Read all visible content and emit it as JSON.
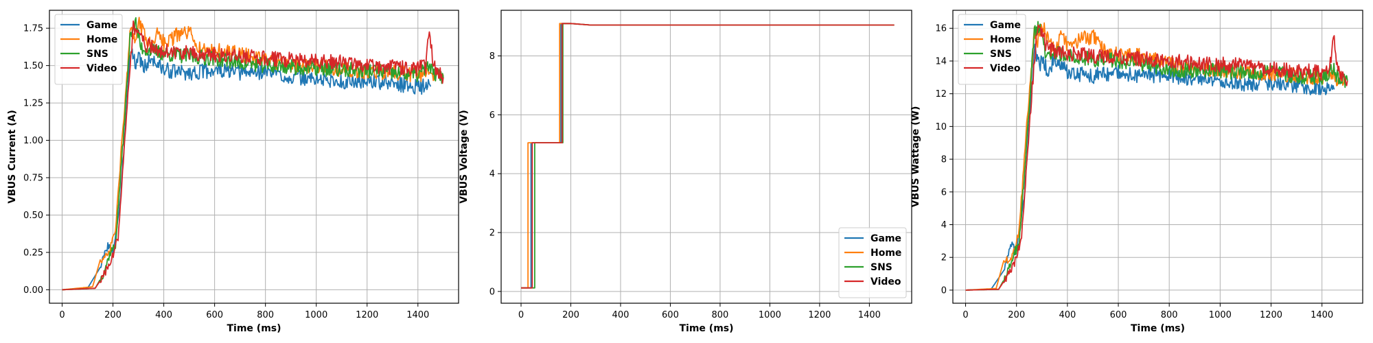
{
  "colors": {
    "Game": "#1f77b4",
    "Home": "#ff7f0e",
    "SNS": "#2ca02c",
    "Video": "#d62728"
  },
  "chart_data": [
    {
      "type": "line",
      "xlabel": "Time (ms)",
      "ylabel": "VBUS Current (A)",
      "xlim": [
        -50,
        1560
      ],
      "ylim": [
        -0.09,
        1.87
      ],
      "xticks": [
        0,
        200,
        400,
        600,
        800,
        1000,
        1200,
        1400
      ],
      "yticks": [
        0.0,
        0.25,
        0.5,
        0.75,
        1.0,
        1.25,
        1.5,
        1.75
      ],
      "ytick_labels": [
        "0.00",
        "0.25",
        "0.50",
        "0.75",
        "1.00",
        "1.25",
        "1.50",
        "1.75"
      ],
      "grid": true,
      "legend_position": "top-left",
      "series": [
        {
          "name": "Game",
          "x": [
            0,
            100,
            150,
            180,
            200,
            230,
            260,
            270,
            290,
            300,
            320,
            350,
            400,
            500,
            600,
            700,
            800,
            900,
            1000,
            1100,
            1200,
            1300,
            1400,
            1450
          ],
          "y": [
            0.0,
            0.01,
            0.15,
            0.3,
            0.25,
            0.6,
            1.4,
            1.62,
            1.5,
            1.58,
            1.48,
            1.55,
            1.47,
            1.45,
            1.47,
            1.45,
            1.46,
            1.42,
            1.41,
            1.39,
            1.4,
            1.38,
            1.36,
            1.36
          ]
        },
        {
          "name": "Home",
          "x": [
            0,
            120,
            150,
            180,
            210,
            240,
            270,
            280,
            300,
            330,
            350,
            380,
            400,
            450,
            500,
            550,
            600,
            700,
            800,
            900,
            1000,
            1100,
            1200,
            1300,
            1400,
            1500
          ],
          "y": [
            0.0,
            0.02,
            0.2,
            0.22,
            0.4,
            1.1,
            1.75,
            1.65,
            1.78,
            1.7,
            1.62,
            1.75,
            1.65,
            1.7,
            1.72,
            1.6,
            1.6,
            1.58,
            1.53,
            1.5,
            1.5,
            1.47,
            1.46,
            1.45,
            1.44,
            1.43
          ]
        },
        {
          "name": "SNS",
          "x": [
            0,
            130,
            160,
            190,
            210,
            240,
            270,
            290,
            310,
            350,
            400,
            500,
            600,
            700,
            800,
            900,
            1000,
            1100,
            1200,
            1300,
            1400,
            1450,
            1460,
            1500
          ],
          "y": [
            0.0,
            0.01,
            0.1,
            0.25,
            0.3,
            1.0,
            1.74,
            1.78,
            1.62,
            1.6,
            1.58,
            1.56,
            1.55,
            1.52,
            1.5,
            1.49,
            1.48,
            1.47,
            1.47,
            1.45,
            1.44,
            1.5,
            1.44,
            1.42
          ]
        },
        {
          "name": "Video",
          "x": [
            0,
            130,
            165,
            195,
            220,
            250,
            280,
            300,
            320,
            350,
            400,
            500,
            600,
            700,
            800,
            900,
            1000,
            1100,
            1200,
            1300,
            1400,
            1430,
            1445,
            1460,
            1500
          ],
          "y": [
            0.0,
            0.01,
            0.1,
            0.2,
            0.35,
            1.1,
            1.76,
            1.72,
            1.65,
            1.62,
            1.6,
            1.58,
            1.57,
            1.56,
            1.55,
            1.54,
            1.53,
            1.52,
            1.5,
            1.49,
            1.48,
            1.5,
            1.73,
            1.5,
            1.42
          ]
        }
      ]
    },
    {
      "type": "line",
      "xlabel": "Time (ms)",
      "ylabel": "VBUS Voltage (V)",
      "xlim": [
        -80,
        1570
      ],
      "ylim": [
        -0.4,
        9.55
      ],
      "xticks": [
        0,
        200,
        400,
        600,
        800,
        1000,
        1200,
        1400
      ],
      "yticks": [
        0,
        2,
        4,
        6,
        8
      ],
      "ytick_labels": [
        "0",
        "2",
        "4",
        "6",
        "8"
      ],
      "grid": true,
      "legend_position": "bottom-right",
      "series": [
        {
          "name": "Game",
          "x": [
            0,
            40,
            40,
            160,
            160,
            200,
            280,
            1500
          ],
          "y": [
            0.12,
            0.12,
            5.05,
            5.05,
            9.1,
            9.1,
            9.05,
            9.05
          ]
        },
        {
          "name": "Home",
          "x": [
            0,
            28,
            28,
            155,
            155,
            200,
            280,
            1500
          ],
          "y": [
            0.12,
            0.12,
            5.05,
            5.05,
            9.1,
            9.1,
            9.05,
            9.05
          ]
        },
        {
          "name": "SNS",
          "x": [
            0,
            55,
            55,
            168,
            168,
            200,
            280,
            1500
          ],
          "y": [
            0.12,
            0.12,
            5.05,
            5.05,
            9.1,
            9.1,
            9.05,
            9.05
          ]
        },
        {
          "name": "Video",
          "x": [
            0,
            45,
            45,
            165,
            165,
            200,
            280,
            1500
          ],
          "y": [
            0.12,
            0.12,
            5.05,
            5.05,
            9.1,
            9.1,
            9.05,
            9.05
          ]
        }
      ]
    },
    {
      "type": "line",
      "xlabel": "Time (ms)",
      "ylabel": "VBUS Wattage (W)",
      "xlim": [
        -50,
        1560
      ],
      "ylim": [
        -0.8,
        17.1
      ],
      "xticks": [
        0,
        200,
        400,
        600,
        800,
        1000,
        1200,
        1400
      ],
      "yticks": [
        0,
        2,
        4,
        6,
        8,
        10,
        12,
        14,
        16
      ],
      "ytick_labels": [
        "0",
        "2",
        "4",
        "6",
        "8",
        "10",
        "12",
        "14",
        "16"
      ],
      "grid": true,
      "legend_position": "top-left",
      "series": [
        {
          "name": "Game",
          "x": [
            0,
            100,
            150,
            180,
            200,
            230,
            260,
            270,
            290,
            300,
            320,
            350,
            400,
            500,
            600,
            700,
            800,
            900,
            1000,
            1100,
            1200,
            1300,
            1400,
            1450
          ],
          "y": [
            0.0,
            0.05,
            1.2,
            2.8,
            2.3,
            5.5,
            12.5,
            14.8,
            13.6,
            14.3,
            13.4,
            14.0,
            13.3,
            13.1,
            13.3,
            13.1,
            13.2,
            12.8,
            12.7,
            12.6,
            12.7,
            12.5,
            12.3,
            12.3
          ]
        },
        {
          "name": "Home",
          "x": [
            0,
            120,
            150,
            180,
            210,
            240,
            270,
            280,
            300,
            330,
            350,
            380,
            400,
            450,
            500,
            550,
            600,
            700,
            800,
            900,
            1000,
            1100,
            1200,
            1300,
            1400,
            1500
          ],
          "y": [
            0.0,
            0.1,
            1.8,
            2.0,
            3.6,
            10.0,
            15.8,
            14.9,
            16.1,
            15.3,
            14.6,
            15.8,
            14.9,
            15.3,
            15.5,
            14.5,
            14.4,
            14.3,
            13.8,
            13.5,
            13.5,
            13.3,
            13.2,
            13.1,
            13.0,
            12.9
          ]
        },
        {
          "name": "SNS",
          "x": [
            0,
            130,
            160,
            190,
            210,
            240,
            270,
            290,
            310,
            350,
            400,
            500,
            600,
            700,
            800,
            900,
            1000,
            1100,
            1200,
            1300,
            1400,
            1450,
            1460,
            1500
          ],
          "y": [
            0.0,
            0.05,
            0.9,
            2.3,
            2.7,
            9.0,
            15.7,
            16.1,
            14.6,
            14.5,
            14.3,
            14.1,
            14.0,
            13.7,
            13.5,
            13.4,
            13.4,
            13.3,
            13.3,
            13.1,
            13.0,
            13.5,
            13.0,
            12.8
          ]
        },
        {
          "name": "Video",
          "x": [
            0,
            130,
            165,
            195,
            220,
            250,
            280,
            300,
            320,
            350,
            400,
            500,
            600,
            700,
            800,
            900,
            1000,
            1100,
            1200,
            1300,
            1400,
            1430,
            1445,
            1460,
            1500
          ],
          "y": [
            0.0,
            0.05,
            0.9,
            1.8,
            3.2,
            9.9,
            15.9,
            15.5,
            14.9,
            14.6,
            14.5,
            14.3,
            14.2,
            14.1,
            14.0,
            13.9,
            13.8,
            13.7,
            13.5,
            13.4,
            13.3,
            13.5,
            15.6,
            13.5,
            12.8
          ]
        }
      ]
    }
  ]
}
